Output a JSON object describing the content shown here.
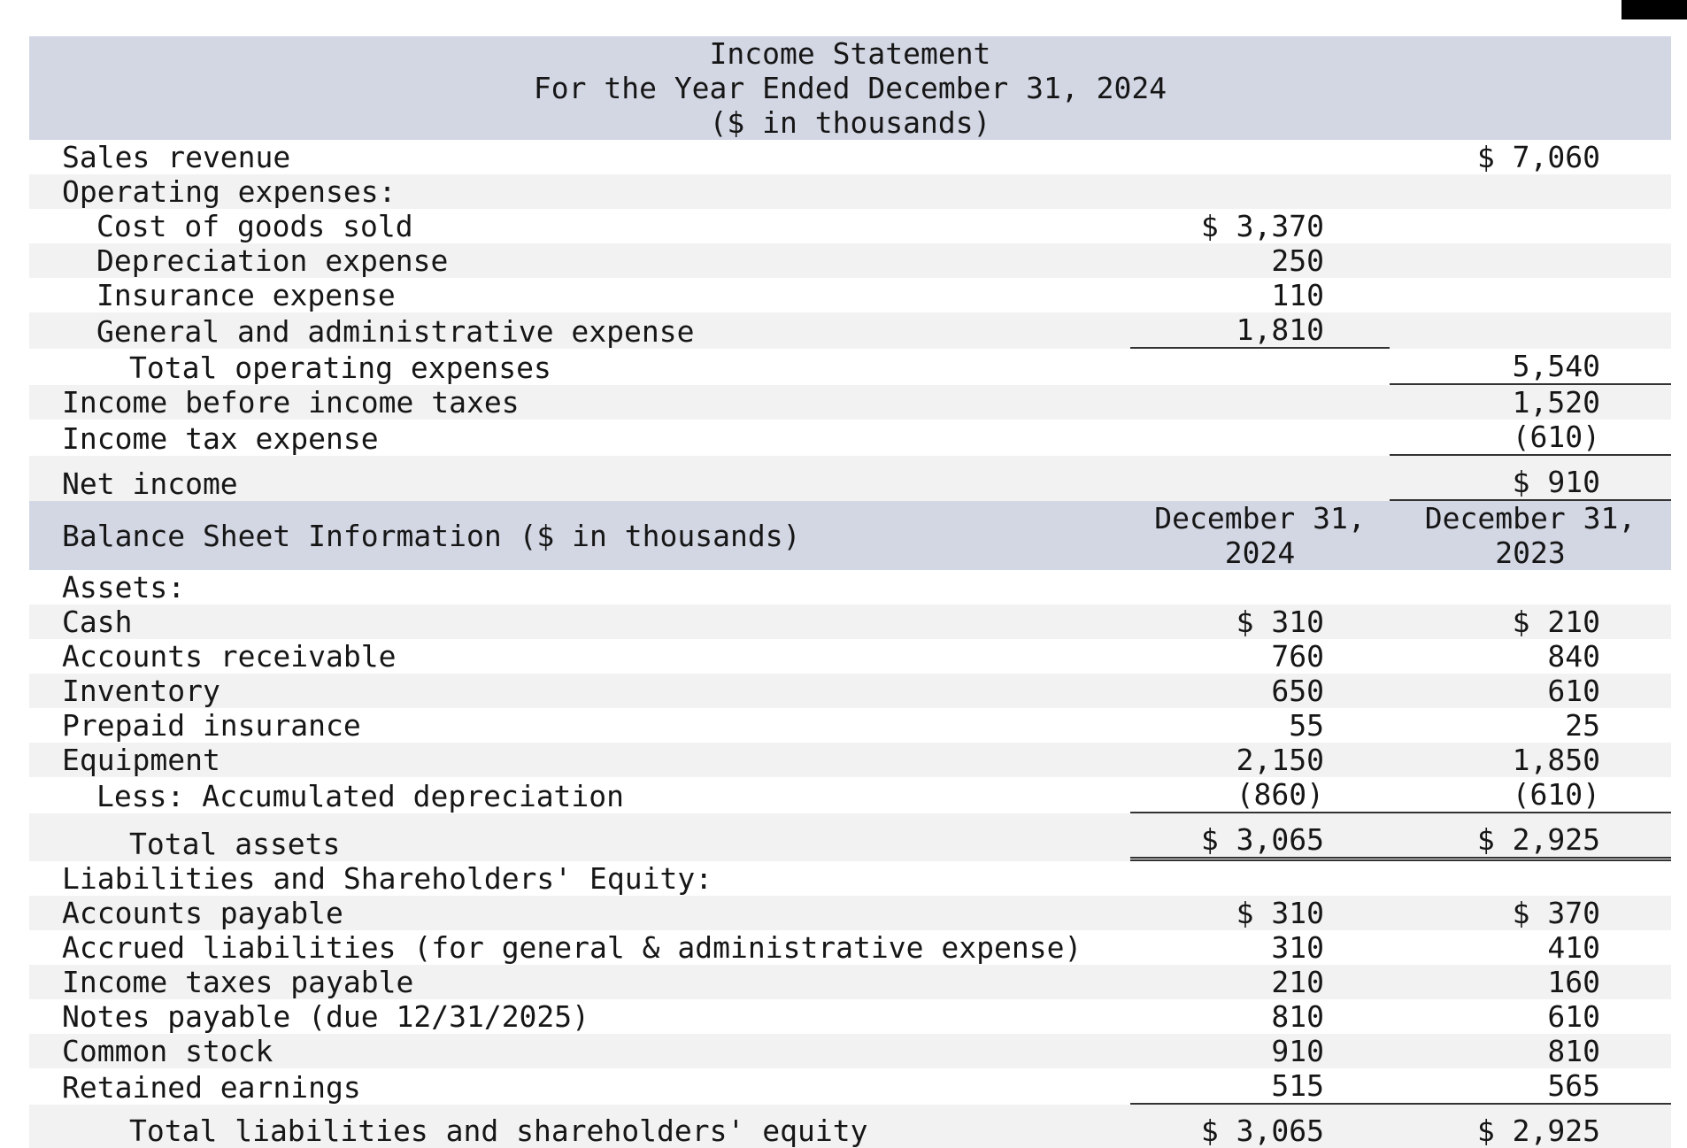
{
  "colors": {
    "header_band": "#d3d7e4",
    "row_stripe": "#f2f2f3",
    "rule_line": "#333333",
    "corner_accent": "#000000"
  },
  "income_statement": {
    "title": "Income Statement",
    "subtitle": "For the Year Ended December 31, 2024",
    "unit_note": "($ in thousands)",
    "rows": [
      {
        "label": "Sales revenue",
        "indent": 0,
        "col1": "",
        "col2": "$ 7,060"
      },
      {
        "label": "Operating expenses:",
        "indent": 0,
        "col1": "",
        "col2": ""
      },
      {
        "label": "Cost of goods sold",
        "indent": 1,
        "col1": "$ 3,370",
        "col2": ""
      },
      {
        "label": "Depreciation expense",
        "indent": 1,
        "col1": "250",
        "col2": ""
      },
      {
        "label": "Insurance expense",
        "indent": 1,
        "col1": "110",
        "col2": ""
      },
      {
        "label": "General and administrative expense",
        "indent": 1,
        "col1": "1,810",
        "col2": "",
        "u1": "solid"
      },
      {
        "label": "Total operating expenses",
        "indent": 2,
        "col1": "",
        "col2": "5,540",
        "u2": "solid"
      },
      {
        "label": "Income before income taxes",
        "indent": 0,
        "col1": "",
        "col2": "1,520"
      },
      {
        "label": "Income tax expense",
        "indent": 0,
        "col1": "",
        "col2": "(610)",
        "u2": "solid"
      },
      {
        "label": "Net income",
        "indent": 0,
        "col1": "",
        "col2": "$ 910",
        "u2": "solid",
        "pad": true
      }
    ]
  },
  "balance_sheet": {
    "title": "Balance Sheet Information ($ in thousands)",
    "col_header_2024": "December 31,\n2024",
    "col_header_2023": "December 31,\n2023",
    "rows": [
      {
        "label": "Assets:",
        "indent": 0,
        "col1": "",
        "col2": ""
      },
      {
        "label": "Cash",
        "indent": 0,
        "col1": "$ 310",
        "col2": "$ 210"
      },
      {
        "label": "Accounts receivable",
        "indent": 0,
        "col1": "760",
        "col2": "840"
      },
      {
        "label": "Inventory",
        "indent": 0,
        "col1": "650",
        "col2": "610"
      },
      {
        "label": "Prepaid insurance",
        "indent": 0,
        "col1": "55",
        "col2": "25"
      },
      {
        "label": "Equipment",
        "indent": 0,
        "col1": "2,150",
        "col2": "1,850"
      },
      {
        "label": "Less: Accumulated depreciation",
        "indent": 1,
        "col1": "(860)",
        "col2": "(610)",
        "u1": "solid",
        "u2": "solid"
      },
      {
        "label": "Total assets",
        "indent": 2,
        "col1": "$ 3,065",
        "col2": "$ 2,925",
        "u1": "double",
        "u2": "double",
        "pad": true
      },
      {
        "label": "Liabilities and Shareholders' Equity:",
        "indent": 0,
        "col1": "",
        "col2": ""
      },
      {
        "label": "Accounts payable",
        "indent": 0,
        "col1": "$ 310",
        "col2": "$ 370"
      },
      {
        "label": "Accrued liabilities (for general & administrative expense)",
        "indent": 0,
        "col1": "310",
        "col2": "410"
      },
      {
        "label": "Income taxes payable",
        "indent": 0,
        "col1": "210",
        "col2": "160"
      },
      {
        "label": "Notes payable (due 12/31/2025)",
        "indent": 0,
        "col1": "810",
        "col2": "610"
      },
      {
        "label": "Common stock",
        "indent": 0,
        "col1": "910",
        "col2": "810"
      },
      {
        "label": "Retained earnings",
        "indent": 0,
        "col1": "515",
        "col2": "565",
        "u1": "solid",
        "u2": "solid"
      },
      {
        "label": "Total liabilities and shareholders' equity",
        "indent": 2,
        "col1": "$ 3,065",
        "col2": "$ 2,925",
        "pad": true
      }
    ]
  }
}
